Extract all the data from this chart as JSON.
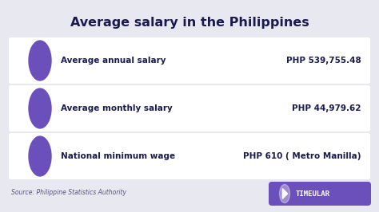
{
  "title": "Average salary in the Philippines",
  "title_color": "#1a1a4e",
  "title_fontsize": 11.5,
  "bg_color": "#e8e8f0",
  "card_color": "#ffffff",
  "circle_color": "#6b4fbb",
  "label_color": "#1a1a4e",
  "value_color": "#1a1a4e",
  "rows": [
    {
      "label": "Average annual salary",
      "value": "PHP 539,755.48"
    },
    {
      "label": "Average monthly salary",
      "value": "PHP 44,979.62"
    },
    {
      "label": "National minimum wage",
      "value": "PHP 610 ( Metro Manilla)"
    }
  ],
  "source_text": "Source: Philippine Statistics Authority",
  "source_color": "#555577",
  "brand_text": "TIMEULAR",
  "brand_color": "#6b4fbb",
  "label_fontsize": 7.5,
  "value_fontsize": 7.5,
  "source_fontsize": 5.5,
  "brand_fontsize": 6.5
}
